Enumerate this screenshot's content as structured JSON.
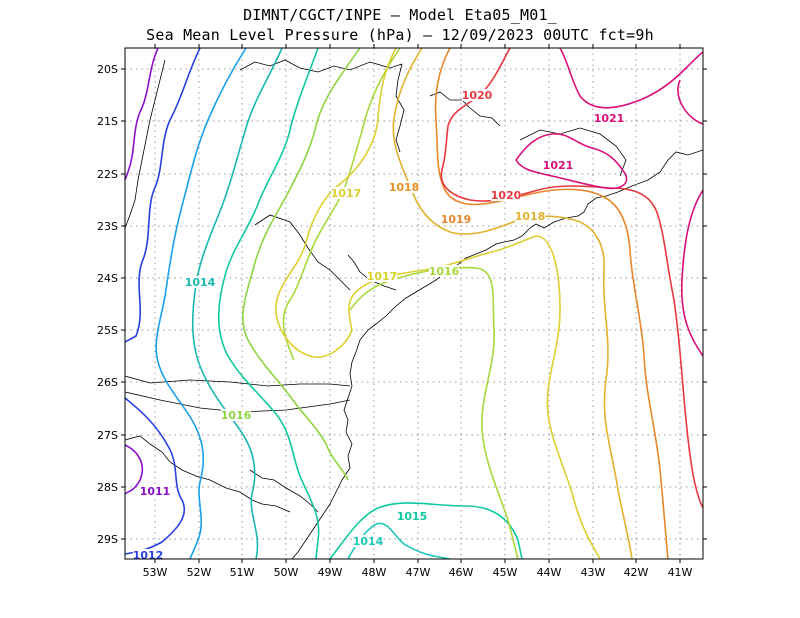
{
  "title": {
    "line1": "DIMNT/CGCT/INPE —  Model Eta05_M01_",
    "line2": "Sea Mean Level Pressure (hPa) — 12/09/2023 00UTC fct=9h"
  },
  "axes": {
    "lat_labels": [
      "20S",
      "21S",
      "22S",
      "23S",
      "24S",
      "25S",
      "26S",
      "27S",
      "28S",
      "29S"
    ],
    "lon_labels": [
      "53W",
      "52W",
      "51W",
      "50W",
      "49W",
      "48W",
      "47W",
      "46W",
      "45W",
      "44W",
      "43W",
      "42W",
      "41W"
    ]
  },
  "contour_labels": [
    {
      "text": "1020",
      "color": "#e8393f"
    },
    {
      "text": "1021",
      "color": "#d90f7a"
    },
    {
      "text": "1021",
      "color": "#d90f7a"
    },
    {
      "text": "1018",
      "color": "#e89020"
    },
    {
      "text": "1017",
      "color": "#dccf2e"
    },
    {
      "text": "1020",
      "color": "#e8393f"
    },
    {
      "text": "1019",
      "color": "#e8862a"
    },
    {
      "text": "1018",
      "color": "#e2b22c"
    },
    {
      "text": "1014",
      "color": "#18b8b0"
    },
    {
      "text": "1017",
      "color": "#d8d22e"
    },
    {
      "text": "1016",
      "color": "#a8d83a"
    },
    {
      "text": "1016",
      "color": "#8ed442"
    },
    {
      "text": "1011",
      "color": "#8a10c8"
    },
    {
      "text": "1015",
      "color": "#10c8a0"
    },
    {
      "text": "1014",
      "color": "#18c8b8"
    },
    {
      "text": "1012",
      "color": "#2840e0"
    }
  ]
}
